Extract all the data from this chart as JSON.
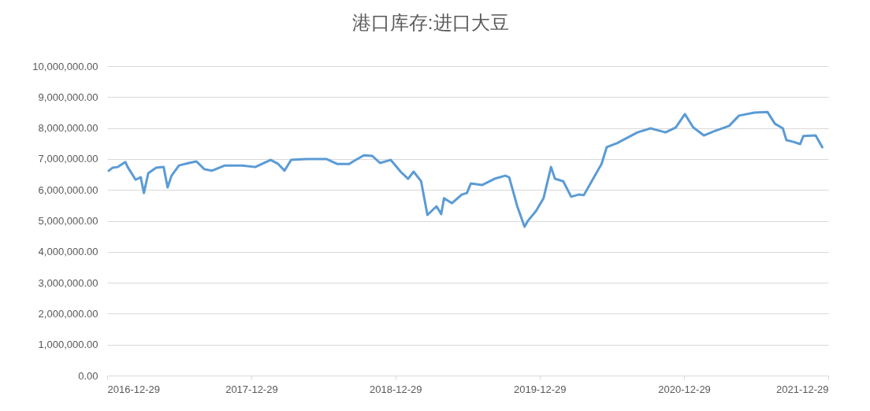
{
  "chart_data": {
    "type": "line",
    "title": "港口库存:进口大豆",
    "x": [
      "2017-01-02",
      "2017-01-12",
      "2017-01-25",
      "2017-02-13",
      "2017-02-19",
      "2017-03-11",
      "2017-03-24",
      "2017-04-01",
      "2017-04-12",
      "2017-05-02",
      "2017-05-21",
      "2017-05-31",
      "2017-06-10",
      "2017-06-29",
      "2017-07-24",
      "2017-08-12",
      "2017-09-01",
      "2017-09-20",
      "2017-10-23",
      "2017-12-06",
      "2018-01-08",
      "2018-02-16",
      "2018-03-07",
      "2018-03-23",
      "2018-04-09",
      "2018-05-18",
      "2018-07-07",
      "2018-08-03",
      "2018-09-03",
      "2018-09-13",
      "2018-10-10",
      "2018-10-31",
      "2018-11-20",
      "2018-12-17",
      "2019-01-11",
      "2019-01-30",
      "2019-02-13",
      "2019-03-04",
      "2019-03-20",
      "2019-04-12",
      "2019-04-24",
      "2019-05-01",
      "2019-05-21",
      "2019-06-15",
      "2019-06-28",
      "2019-07-08",
      "2019-08-06",
      "2019-09-06",
      "2019-10-03",
      "2019-10-13",
      "2019-11-03",
      "2019-11-21",
      "2019-11-30",
      "2019-12-20",
      "2020-01-08",
      "2020-01-27",
      "2020-02-06",
      "2020-02-27",
      "2020-03-18",
      "2020-04-06",
      "2020-04-19",
      "2020-05-09",
      "2020-06-03",
      "2020-06-16",
      "2020-07-12",
      "2020-09-02",
      "2020-10-05",
      "2020-11-12",
      "2020-12-08",
      "2020-12-31",
      "2021-01-21",
      "2021-02-17",
      "2021-03-14",
      "2021-04-22",
      "2021-05-17",
      "2021-06-25",
      "2021-07-28",
      "2021-08-16",
      "2021-09-05",
      "2021-09-14",
      "2021-09-30",
      "2021-10-19",
      "2021-10-27",
      "2021-11-27",
      "2021-12-14"
    ],
    "series": [
      {
        "color": "#5b9bd5",
        "values": [
          6620000,
          6720000,
          6740000,
          6900000,
          6740000,
          6330000,
          6410000,
          5900000,
          6540000,
          6720000,
          6740000,
          6080000,
          6460000,
          6790000,
          6870000,
          6920000,
          6670000,
          6620000,
          6790000,
          6790000,
          6740000,
          6970000,
          6840000,
          6620000,
          6970000,
          7000000,
          7000000,
          6840000,
          6840000,
          6920000,
          7120000,
          7100000,
          6870000,
          6970000,
          6590000,
          6360000,
          6590000,
          6280000,
          5190000,
          5470000,
          5220000,
          5730000,
          5570000,
          5850000,
          5900000,
          6210000,
          6160000,
          6360000,
          6460000,
          6410000,
          5450000,
          4810000,
          5010000,
          5320000,
          5730000,
          6740000,
          6360000,
          6280000,
          5780000,
          5850000,
          5830000,
          6280000,
          6840000,
          7380000,
          7510000,
          7860000,
          7990000,
          7860000,
          8020000,
          8450000,
          8020000,
          7760000,
          7890000,
          8070000,
          8400000,
          8500000,
          8520000,
          8140000,
          7990000,
          7610000,
          7560000,
          7480000,
          7740000,
          7760000,
          7380000
        ]
      }
    ],
    "xlim": [
      "2016-12-29",
      "2021-12-29"
    ],
    "xticks": [
      {
        "value": "2016-12-29",
        "label": "2016-12-29"
      },
      {
        "value": "2017-12-29",
        "label": "2017-12-29"
      },
      {
        "value": "2018-12-29",
        "label": "2018-12-29"
      },
      {
        "value": "2019-12-29",
        "label": "2019-12-29"
      },
      {
        "value": "2020-12-29",
        "label": "2020-12-29"
      },
      {
        "value": "2021-12-29",
        "label": "2021-12-29"
      }
    ],
    "ylim": [
      0,
      10000000
    ],
    "yticks": [
      {
        "value": 0,
        "label": "0.00"
      },
      {
        "value": 1000000,
        "label": "1,000,000.00"
      },
      {
        "value": 2000000,
        "label": "2,000,000.00"
      },
      {
        "value": 3000000,
        "label": "3,000,000.00"
      },
      {
        "value": 4000000,
        "label": "4,000,000.00"
      },
      {
        "value": 5000000,
        "label": "5,000,000.00"
      },
      {
        "value": 6000000,
        "label": "6,000,000.00"
      },
      {
        "value": 7000000,
        "label": "7,000,000.00"
      },
      {
        "value": 8000000,
        "label": "8,000,000.00"
      },
      {
        "value": 9000000,
        "label": "9,000,000.00"
      },
      {
        "value": 10000000,
        "label": "10,000,000.00"
      }
    ],
    "grid": "y",
    "marker": "none",
    "line_style": "solid"
  }
}
